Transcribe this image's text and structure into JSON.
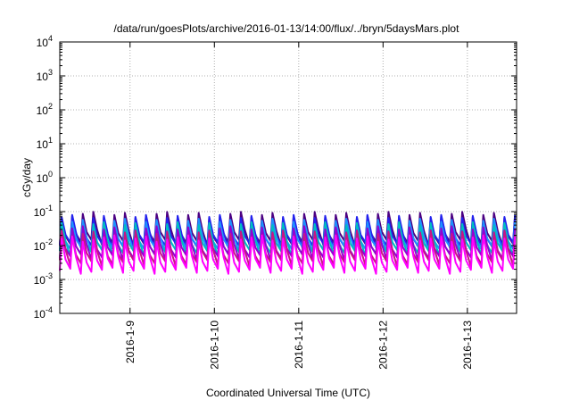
{
  "chart_data": {
    "type": "line",
    "title": "/data/run/goesPlots/archive/2016-01-13/14:00/flux/../bryn/5daysMars.plot",
    "xlabel": "Coordinated Universal Time (UTC)",
    "ylabel": "cGy/day",
    "yscale": "log",
    "ylim": [
      0.0001,
      10000
    ],
    "y_ticks": [
      {
        "base": "10",
        "exp": "-4",
        "value": 0.0001
      },
      {
        "base": "10",
        "exp": "-3",
        "value": 0.001
      },
      {
        "base": "10",
        "exp": "-2",
        "value": 0.01
      },
      {
        "base": "10",
        "exp": "-1",
        "value": 0.1
      },
      {
        "base": "10",
        "exp": "0",
        "value": 1
      },
      {
        "base": "10",
        "exp": "1",
        "value": 10
      },
      {
        "base": "10",
        "exp": "2",
        "value": 100
      },
      {
        "base": "10",
        "exp": "3",
        "value": 1000
      },
      {
        "base": "10",
        "exp": "4",
        "value": 10000
      }
    ],
    "xlim": [
      "2016-01-08 04:00",
      "2016-01-13 14:00"
    ],
    "x_ticks": [
      "2016-1-9",
      "2016-1-10",
      "2016-1-11",
      "2016-1-12",
      "2016-1-13"
    ],
    "grid": true,
    "series": [
      {
        "color": "#4b0082",
        "peak": 0.08,
        "trough": 0.012
      },
      {
        "color": "#2222ee",
        "peak": 0.065,
        "trough": 0.01
      },
      {
        "color": "#1e90ff",
        "peak": 0.05,
        "trough": 0.008
      },
      {
        "color": "#00bfbf",
        "peak": 0.04,
        "trough": 0.006
      },
      {
        "color": "#9400d3",
        "peak": 0.03,
        "trough": 0.0045
      },
      {
        "color": "#c71585",
        "peak": 0.022,
        "trough": 0.003
      },
      {
        "color": "#ff00ff",
        "peak": 0.016,
        "trough": 0.0018
      }
    ],
    "cycle_hours": 3
  }
}
